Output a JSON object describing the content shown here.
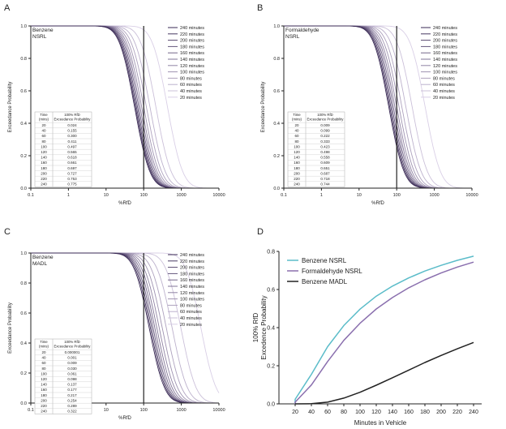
{
  "chart_data": [
    {
      "panel_label": "A",
      "type": "line",
      "annotation": [
        "Benzene",
        "NSRL"
      ],
      "ylabel": "Exceedance Probability",
      "xlabel": "%RfD",
      "xscale": "log",
      "xlim": [
        0.1,
        10000
      ],
      "ylim": [
        0,
        1.0
      ],
      "xticks": [
        "0.1",
        "1",
        "10",
        "100",
        "1000",
        "10000"
      ],
      "yticks": [
        "0.0",
        "0.2",
        "0.4",
        "0.6",
        "0.8",
        "1.0"
      ],
      "reference_line_x": 100,
      "legend_position": "top-right",
      "legend": [
        "240 minutes",
        "220 minutes",
        "200 minutes",
        "180 minutes",
        "160 minutes",
        "140 minutes",
        "120 minutes",
        "100 minutes",
        "80 minutes",
        "60 minutes",
        "40 minutes",
        "20 minutes"
      ],
      "table": {
        "headers": [
          "Time\n(mins)",
          "100% RfD\nExceedance Probability"
        ],
        "rows": [
          [
            "20",
            "0.024"
          ],
          [
            "40",
            "0.155"
          ],
          [
            "60",
            "0.300"
          ],
          [
            "80",
            "0.411"
          ],
          [
            "100",
            "0.497"
          ],
          [
            "120",
            "0.565"
          ],
          [
            "140",
            "0.618"
          ],
          [
            "160",
            "0.661"
          ],
          [
            "180",
            "0.697"
          ],
          [
            "200",
            "0.727"
          ],
          [
            "220",
            "0.753"
          ],
          [
            "240",
            "0.775"
          ]
        ]
      }
    },
    {
      "panel_label": "B",
      "type": "line",
      "annotation": [
        "Formaldehyde",
        "NSRL"
      ],
      "ylabel": "Exceedance Probability",
      "xlabel": "%RfD",
      "xscale": "log",
      "xlim": [
        0.1,
        10000
      ],
      "ylim": [
        0,
        1.0
      ],
      "xticks": [
        "0.1",
        "1",
        "10",
        "100",
        "1000",
        "10000"
      ],
      "yticks": [
        "0.0",
        "0.2",
        "0.4",
        "0.6",
        "0.8",
        "1.0"
      ],
      "reference_line_x": 100,
      "legend_position": "top-right",
      "legend": [
        "240 minutes",
        "220 minutes",
        "200 minutes",
        "180 minutes",
        "160 minutes",
        "140 minutes",
        "120 minutes",
        "100 minutes",
        "80 minutes",
        "60 minutes",
        "40 minutes",
        "20 minutes"
      ],
      "table": {
        "headers": [
          "Time\n(mins)",
          "100% RfD\nExceedance Probability"
        ],
        "rows": [
          [
            "20",
            "0.009"
          ],
          [
            "40",
            "0.099"
          ],
          [
            "60",
            "0.222"
          ],
          [
            "80",
            "0.333"
          ],
          [
            "100",
            "0.423"
          ],
          [
            "120",
            "0.498"
          ],
          [
            "140",
            "0.558"
          ],
          [
            "160",
            "0.609"
          ],
          [
            "180",
            "0.651"
          ],
          [
            "200",
            "0.687"
          ],
          [
            "220",
            "0.718"
          ],
          [
            "240",
            "0.744"
          ]
        ]
      }
    },
    {
      "panel_label": "C",
      "type": "line",
      "annotation": [
        "Benzene",
        "MADL"
      ],
      "ylabel": "Exceedance Probability",
      "xlabel": "%RfD",
      "xscale": "log",
      "xlim": [
        0.1,
        10000
      ],
      "ylim": [
        0,
        1.0
      ],
      "xticks": [
        "0.1",
        "1",
        "10",
        "100",
        "1000",
        "10000"
      ],
      "yticks": [
        "0.0",
        "0.2",
        "0.4",
        "0.6",
        "0.8",
        "1.0"
      ],
      "reference_line_x": 100,
      "legend_position": "top-right",
      "legend": [
        "240 minutes",
        "220 minutes",
        "200 minutes",
        "180 minutes",
        "160 minutes",
        "140 minutes",
        "120 minutes",
        "100 minutes",
        "80 minutes",
        "60 minutes",
        "40 minutes",
        "20 minutes"
      ],
      "table": {
        "headers": [
          "Time\n(mins)",
          "100% RfD\nExceedance Probability"
        ],
        "rows": [
          [
            "20",
            "0.000001"
          ],
          [
            "40",
            "0.001"
          ],
          [
            "60",
            "0.009"
          ],
          [
            "80",
            "0.030"
          ],
          [
            "100",
            "0.061"
          ],
          [
            "120",
            "0.098"
          ],
          [
            "140",
            "0.137"
          ],
          [
            "160",
            "0.177"
          ],
          [
            "180",
            "0.217"
          ],
          [
            "200",
            "0.254"
          ],
          [
            "220",
            "0.289"
          ],
          [
            "240",
            "0.322"
          ]
        ]
      }
    },
    {
      "panel_label": "D",
      "type": "line",
      "xlabel": "Minutes in Vehicle",
      "ylabel": "100% RfD\nExcedence Probability",
      "xlim": [
        0,
        250
      ],
      "ylim": [
        0,
        0.8
      ],
      "xticks": [
        20,
        40,
        60,
        80,
        100,
        120,
        140,
        160,
        180,
        200,
        220,
        240
      ],
      "yticks": [
        "0.0",
        "0.2",
        "0.4",
        "0.6",
        "0.8"
      ],
      "legend_position": "top-left",
      "x": [
        20,
        40,
        60,
        80,
        100,
        120,
        140,
        160,
        180,
        200,
        220,
        240
      ],
      "series": [
        {
          "name": "Benzene NSRL",
          "color": "#5bbcc9",
          "values": [
            0.024,
            0.155,
            0.3,
            0.411,
            0.497,
            0.565,
            0.618,
            0.661,
            0.697,
            0.727,
            0.753,
            0.775
          ]
        },
        {
          "name": "Formaldehyde NSRL",
          "color": "#8a6fae",
          "values": [
            0.009,
            0.099,
            0.222,
            0.333,
            0.423,
            0.498,
            0.558,
            0.609,
            0.651,
            0.687,
            0.718,
            0.744
          ]
        },
        {
          "name": "Benzene MADL",
          "color": "#222222",
          "values": [
            1e-06,
            0.001,
            0.009,
            0.03,
            0.061,
            0.098,
            0.137,
            0.177,
            0.217,
            0.254,
            0.289,
            0.322
          ]
        }
      ]
    }
  ],
  "colors": {
    "curve_dark": "#3a2a55",
    "curve_light": "#d9cfe6",
    "axis": "#222222"
  }
}
